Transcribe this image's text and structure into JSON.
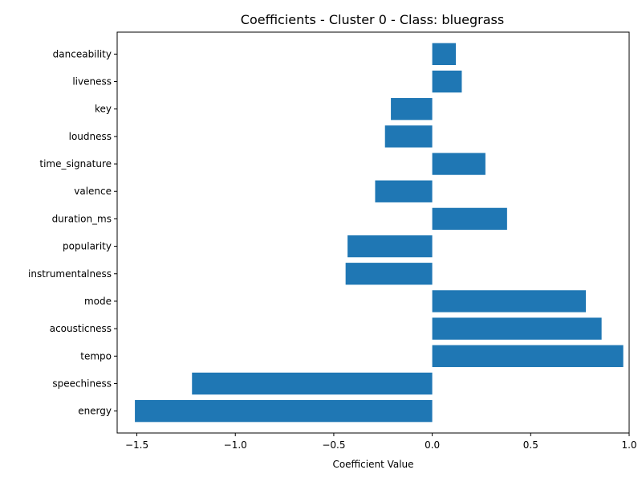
{
  "chart_data": {
    "type": "bar",
    "orientation": "horizontal",
    "title": "Coefficients - Cluster 0 - Class: bluegrass",
    "xlabel": "Coefficient Value",
    "ylabel": "",
    "xlim": [
      -1.6,
      1.0
    ],
    "x_ticks": [
      -1.5,
      -1.0,
      -0.5,
      0.0,
      0.5,
      1.0
    ],
    "x_tick_labels": [
      "−1.5",
      "−1.0",
      "−0.5",
      "0.0",
      "0.5",
      "1.0"
    ],
    "grid": false,
    "bar_color": "#1f77b4",
    "categories": [
      "energy",
      "speechiness",
      "tempo",
      "acousticness",
      "mode",
      "instrumentalness",
      "popularity",
      "duration_ms",
      "valence",
      "time_signature",
      "loudness",
      "key",
      "liveness",
      "danceability"
    ],
    "values": [
      -1.51,
      -1.22,
      0.97,
      0.86,
      0.78,
      -0.44,
      -0.43,
      0.38,
      -0.29,
      0.27,
      -0.24,
      -0.21,
      0.15,
      0.12
    ]
  }
}
